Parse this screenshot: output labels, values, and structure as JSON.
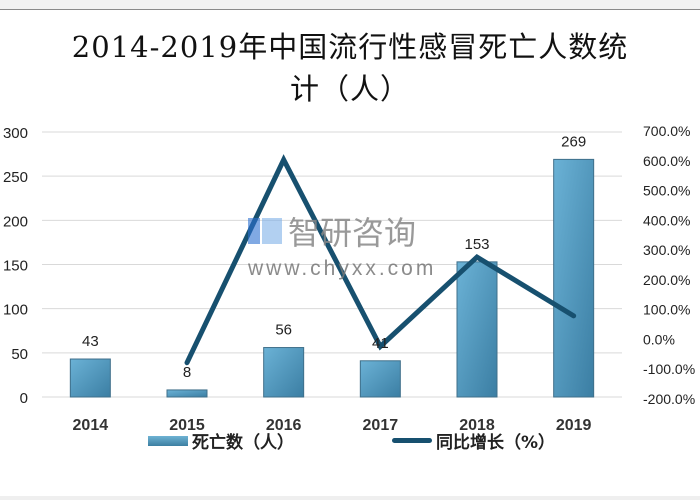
{
  "title": "2014-2019年中国流行性感冒死亡人数统计（人）",
  "title_line1": "2014-2019年中国流行性感冒死亡人数统",
  "title_line2": "计（人）",
  "watermark": {
    "brand": "智研咨询",
    "url": "www.chyxx.com"
  },
  "legend": {
    "bar": "死亡数（人）",
    "line": "同比增长（%）"
  },
  "colors": {
    "bar": "#4d97bd",
    "line": "#17506f",
    "grid": "#d9d9d9"
  },
  "chart_data": {
    "type": "bar",
    "title": "2014-2019年中国流行性感冒死亡人数统计（人）",
    "categories": [
      "2014",
      "2015",
      "2016",
      "2017",
      "2018",
      "2019"
    ],
    "series": [
      {
        "name": "死亡数（人）",
        "type": "bar",
        "axis": "left",
        "values": [
          43,
          8,
          56,
          41,
          153,
          269
        ]
      },
      {
        "name": "同比增长（%）",
        "type": "line",
        "axis": "right",
        "values": [
          null,
          -81.4,
          600.0,
          -26.8,
          273.2,
          75.8
        ]
      }
    ],
    "left_axis": {
      "ticks": [
        "0",
        "50",
        "100",
        "150",
        "200",
        "250",
        "300"
      ],
      "ylim": [
        0,
        300
      ]
    },
    "right_axis": {
      "ticks": [
        "-200.0%",
        "-100.0%",
        "0.0%",
        "100.0%",
        "200.0%",
        "300.0%",
        "400.0%",
        "500.0%",
        "600.0%",
        "700.0%"
      ],
      "ylim": [
        -200,
        700
      ]
    },
    "data_labels": [
      "43",
      "8",
      "56",
      "41",
      "153",
      "269"
    ],
    "grid": true,
    "legend_position": "bottom"
  }
}
